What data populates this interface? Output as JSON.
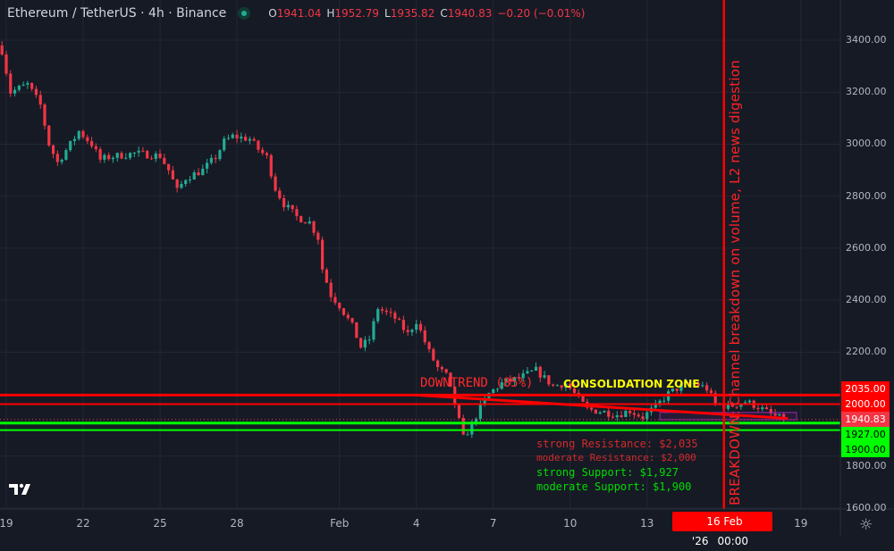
{
  "header": {
    "symbol": "Ethereum / TetherUS · 4h · Binance",
    "status_color": "#22ab94",
    "ohlc": {
      "o_label": "O",
      "o": "1941.04",
      "h_label": "H",
      "h": "1952.79",
      "l_label": "L",
      "l": "1935.82",
      "c_label": "C",
      "c": "1940.83",
      "change": "−0.20 (−0.01%)"
    }
  },
  "price_axis": [
    "3400.00",
    "3200.00",
    "3000.00",
    "2800.00",
    "2600.00",
    "2400.00",
    "2200.00",
    "1800.00",
    "1600.00"
  ],
  "time_axis": [
    "19",
    "22",
    "25",
    "28",
    "Feb",
    "4",
    "7",
    "10",
    "13",
    "19"
  ],
  "price_tags": {
    "strong_resistance": "2035.00",
    "moderate_resistance": "2000.00",
    "current": "1940.83",
    "strong_support": "1927.00",
    "moderate_support": "1900.00"
  },
  "crosshair_time": {
    "date": "16 Feb '26",
    "time": "00:00"
  },
  "annotations": {
    "downtrend": "DOWNTREND (85%)",
    "consolidation": "CONSOLIDATION ZONE",
    "strong_resistance": "strong Resistance: $2,035",
    "moderate_resistance": "moderate Resistance: $2,000",
    "strong_support": "strong Support: $1,927",
    "moderate_support": "moderate Support: $1,900",
    "breakdown": "BREAKDOWN: Channel breakdown on volume, L2 news digestion"
  },
  "colors": {
    "up": "#22ab94",
    "down": "#f23645",
    "resistance": "#ff0000",
    "support": "#00ff00",
    "zone_text": "#ffff00",
    "background": "#161a25"
  },
  "icons": {
    "logo": "tradingview-logo",
    "settings": "gear-icon"
  },
  "chart_data": {
    "type": "candlestick",
    "interval": "4h",
    "ylim": [
      1580,
      3480
    ],
    "y_ticks": [
      1600,
      1800,
      2000,
      2200,
      2400,
      2600,
      2800,
      3000,
      3200,
      3400
    ],
    "grid": true,
    "levels": {
      "strong_resistance": 2035,
      "moderate_resistance": 2000,
      "strong_support": 1927,
      "moderate_support": 1900,
      "last": 1940.83
    },
    "close_path": [
      [
        "2026-01-18T20:00",
        3360
      ],
      [
        "2026-01-19T04:00",
        3200
      ],
      [
        "2026-01-19T20:00",
        3230
      ],
      [
        "2026-01-20T08:00",
        3150
      ],
      [
        "2026-01-20T16:00",
        3000
      ],
      [
        "2026-01-21T00:00",
        2930
      ],
      [
        "2026-01-21T12:00",
        3000
      ],
      [
        "2026-01-21T20:00",
        3050
      ],
      [
        "2026-01-22T08:00",
        3000
      ],
      [
        "2026-01-22T16:00",
        2940
      ],
      [
        "2026-01-23T00:00",
        2950
      ],
      [
        "2026-01-24T00:00",
        2965
      ],
      [
        "2026-01-25T00:00",
        2955
      ],
      [
        "2026-01-25T08:00",
        2900
      ],
      [
        "2026-01-25T16:00",
        2820
      ],
      [
        "2026-01-26T00:00",
        2870
      ],
      [
        "2026-01-26T16:00",
        2900
      ],
      [
        "2026-01-27T04:00",
        2950
      ],
      [
        "2026-01-27T12:00",
        3010
      ],
      [
        "2026-01-27T20:00",
        3030
      ],
      [
        "2026-01-28T12:00",
        3020
      ],
      [
        "2026-01-28T20:00",
        2980
      ],
      [
        "2026-01-29T04:00",
        2950
      ],
      [
        "2026-01-29T12:00",
        2830
      ],
      [
        "2026-01-29T20:00",
        2770
      ],
      [
        "2026-01-30T08:00",
        2720
      ],
      [
        "2026-01-30T20:00",
        2700
      ],
      [
        "2026-01-31T04:00",
        2640
      ],
      [
        "2026-01-31T08:00",
        2520
      ],
      [
        "2026-01-31T16:00",
        2420
      ],
      [
        "2026-02-01T00:00",
        2380
      ],
      [
        "2026-02-01T12:00",
        2300
      ],
      [
        "2026-02-01T20:00",
        2220
      ],
      [
        "2026-02-02T04:00",
        2250
      ],
      [
        "2026-02-02T12:00",
        2370
      ],
      [
        "2026-02-02T20:00",
        2350
      ],
      [
        "2026-02-03T04:00",
        2330
      ],
      [
        "2026-02-03T16:00",
        2270
      ],
      [
        "2026-02-04T00:00",
        2320
      ],
      [
        "2026-02-04T12:00",
        2200
      ],
      [
        "2026-02-04T20:00",
        2140
      ],
      [
        "2026-02-05T04:00",
        2110
      ],
      [
        "2026-02-05T12:00",
        2000
      ],
      [
        "2026-02-05T20:00",
        1870
      ],
      [
        "2026-02-06T04:00",
        1920
      ],
      [
        "2026-02-06T12:00",
        1990
      ],
      [
        "2026-02-06T20:00",
        2040
      ],
      [
        "2026-02-07T08:00",
        2080
      ],
      [
        "2026-02-08T00:00",
        2100
      ],
      [
        "2026-02-08T16:00",
        2130
      ],
      [
        "2026-02-09T08:00",
        2070
      ],
      [
        "2026-02-09T20:00",
        2080
      ],
      [
        "2026-02-10T04:00",
        2040
      ],
      [
        "2026-02-10T16:00",
        1980
      ],
      [
        "2026-02-11T08:00",
        1970
      ],
      [
        "2026-02-11T20:00",
        1960
      ],
      [
        "2026-02-12T08:00",
        1975
      ],
      [
        "2026-02-12T20:00",
        1950
      ],
      [
        "2026-02-13T08:00",
        1990
      ],
      [
        "2026-02-13T20:00",
        2040
      ],
      [
        "2026-02-14T08:00",
        2070
      ],
      [
        "2026-02-14T20:00",
        2080
      ],
      [
        "2026-02-15T08:00",
        2060
      ],
      [
        "2026-02-15T16:00",
        2000
      ],
      [
        "2026-02-16T04:00",
        1990
      ],
      [
        "2026-02-16T20:00",
        2010
      ],
      [
        "2026-02-17T08:00",
        1990
      ],
      [
        "2026-02-17T20:00",
        1960
      ],
      [
        "2026-02-18T08:00",
        1940.83
      ]
    ],
    "downtrend_line": [
      [
        "2026-02-04T00:00",
        2035
      ],
      [
        "2026-02-18T12:00",
        1945
      ]
    ],
    "consolidation_zone": {
      "from": "2026-02-13T12:00",
      "to": "2026-02-18T20:00",
      "high": 1968,
      "low": 1940
    },
    "vertical_marker": "2026-02-16T00:00"
  }
}
